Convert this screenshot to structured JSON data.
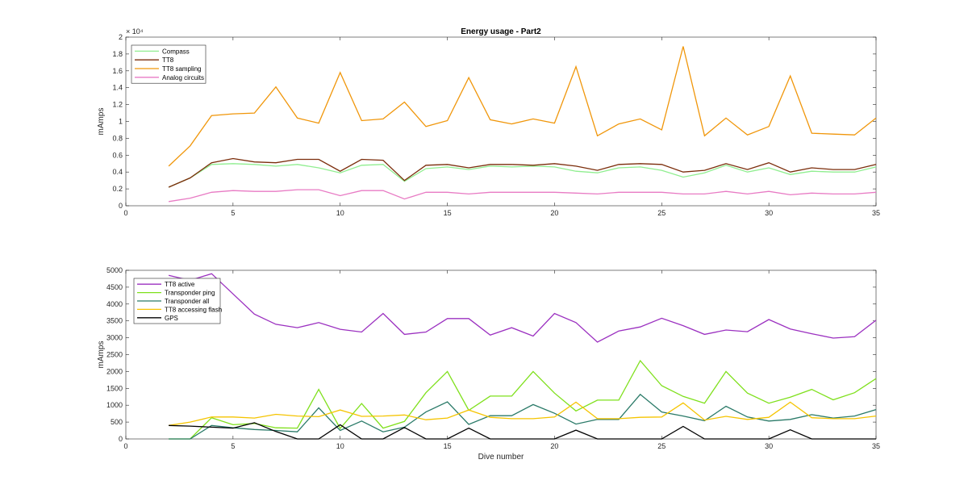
{
  "chart_data": [
    {
      "type": "line",
      "title": "Energy usage - Part2",
      "xlabel": "",
      "ylabel": "mAmps",
      "exponent_label": "× 10⁴",
      "xlim": [
        0,
        35
      ],
      "ylim": [
        0,
        20000
      ],
      "xticks": [
        0,
        5,
        10,
        15,
        20,
        25,
        30,
        35
      ],
      "yticks": [
        0,
        2000,
        4000,
        6000,
        8000,
        10000,
        12000,
        14000,
        16000,
        18000,
        20000
      ],
      "ytick_labels": [
        "0",
        "0.2",
        "0.4",
        "0.6",
        "0.8",
        "1",
        "1.2",
        "1.4",
        "1.6",
        "1.8",
        "2"
      ],
      "grid": false,
      "legend_position": "top-left",
      "x": [
        2,
        3,
        4,
        5,
        6,
        7,
        8,
        9,
        10,
        11,
        12,
        13,
        14,
        15,
        16,
        17,
        18,
        19,
        20,
        21,
        22,
        23,
        24,
        25,
        26,
        27,
        28,
        29,
        30,
        31,
        32,
        33,
        34,
        35
      ],
      "series": [
        {
          "name": "Compass",
          "color": "#90ee90",
          "values": [
            2200,
            3300,
            4900,
            5000,
            4900,
            4700,
            4900,
            4500,
            3900,
            4800,
            4900,
            2900,
            4400,
            4600,
            4300,
            4700,
            4600,
            4700,
            4600,
            4100,
            3900,
            4500,
            4600,
            4200,
            3400,
            3900,
            4800,
            4000,
            4500,
            3700,
            4100,
            4000,
            4000,
            4600
          ]
        },
        {
          "name": "TT8",
          "color": "#7b2d0b",
          "values": [
            2200,
            3300,
            5100,
            5600,
            5200,
            5100,
            5500,
            5500,
            4100,
            5500,
            5400,
            3000,
            4800,
            4900,
            4500,
            4900,
            4900,
            4800,
            5000,
            4700,
            4200,
            4900,
            5000,
            4900,
            4000,
            4200,
            5000,
            4300,
            5100,
            4000,
            4500,
            4300,
            4300,
            4900
          ]
        },
        {
          "name": "TT8 sampling",
          "color": "#f0960a",
          "values": [
            4700,
            7100,
            10700,
            10900,
            11000,
            14100,
            10400,
            9800,
            15800,
            10100,
            10300,
            12300,
            9400,
            10100,
            15200,
            10200,
            9700,
            10300,
            9800,
            16500,
            8300,
            9700,
            10300,
            9000,
            18900,
            8300,
            10400,
            8400,
            9400,
            15400,
            8600,
            8500,
            8400,
            10400
          ]
        },
        {
          "name": "Analog circuits",
          "color": "#e87bc4",
          "values": [
            500,
            900,
            1600,
            1800,
            1700,
            1700,
            1900,
            1900,
            1200,
            1800,
            1800,
            800,
            1600,
            1600,
            1400,
            1600,
            1600,
            1600,
            1600,
            1500,
            1400,
            1600,
            1600,
            1600,
            1400,
            1400,
            1700,
            1400,
            1700,
            1300,
            1500,
            1400,
            1400,
            1600
          ]
        }
      ]
    },
    {
      "type": "line",
      "title": "",
      "xlabel": "Dive number",
      "ylabel": "mAmps",
      "xlim": [
        0,
        35
      ],
      "ylim": [
        0,
        5000
      ],
      "xticks": [
        0,
        5,
        10,
        15,
        20,
        25,
        30,
        35
      ],
      "yticks": [
        0,
        500,
        1000,
        1500,
        2000,
        2500,
        3000,
        3500,
        4000,
        4500,
        5000
      ],
      "grid": false,
      "legend_position": "top-left",
      "x": [
        2,
        3,
        4,
        5,
        6,
        7,
        8,
        9,
        10,
        11,
        12,
        13,
        14,
        15,
        16,
        17,
        18,
        19,
        20,
        21,
        22,
        23,
        24,
        25,
        26,
        27,
        28,
        29,
        30,
        31,
        32,
        33,
        34,
        35
      ],
      "series": [
        {
          "name": "TT8 active",
          "color": "#9b30c0",
          "values": [
            4850,
            4700,
            4900,
            4300,
            3700,
            3400,
            3300,
            3450,
            3250,
            3170,
            3720,
            3100,
            3170,
            3570,
            3570,
            3080,
            3300,
            3050,
            3720,
            3450,
            2870,
            3200,
            3320,
            3580,
            3360,
            3100,
            3230,
            3180,
            3540,
            3260,
            3120,
            2990,
            3030,
            3520
          ]
        },
        {
          "name": "Transponder ping",
          "color": "#7fe01c",
          "values": [
            0,
            0,
            630,
            420,
            460,
            330,
            320,
            1470,
            310,
            1050,
            320,
            520,
            1370,
            2000,
            850,
            1270,
            1270,
            2000,
            1360,
            830,
            1150,
            1150,
            2320,
            1580,
            1260,
            1060,
            2000,
            1360,
            1060,
            1240,
            1470,
            1160,
            1370,
            1790
          ]
        },
        {
          "name": "Transponder all",
          "color": "#2a7a68",
          "values": [
            0,
            0,
            400,
            330,
            280,
            250,
            210,
            920,
            250,
            530,
            210,
            350,
            800,
            1100,
            430,
            690,
            690,
            1020,
            760,
            440,
            580,
            580,
            1320,
            800,
            680,
            540,
            970,
            650,
            530,
            580,
            720,
            620,
            680,
            870
          ]
        },
        {
          "name": "TT8 accessing flash",
          "color": "#f5c400",
          "values": [
            400,
            500,
            650,
            650,
            620,
            730,
            680,
            660,
            860,
            670,
            680,
            710,
            570,
            620,
            860,
            640,
            600,
            600,
            650,
            1090,
            600,
            600,
            640,
            650,
            1070,
            560,
            670,
            580,
            640,
            1090,
            630,
            600,
            600,
            680
          ]
        },
        {
          "name": "GPS",
          "color": "#000000",
          "values": [
            400,
            380,
            350,
            320,
            480,
            220,
            0,
            0,
            420,
            0,
            0,
            340,
            0,
            0,
            320,
            0,
            0,
            0,
            0,
            260,
            0,
            0,
            0,
            0,
            370,
            0,
            0,
            0,
            0,
            270,
            0,
            0,
            0,
            0
          ]
        }
      ]
    }
  ]
}
